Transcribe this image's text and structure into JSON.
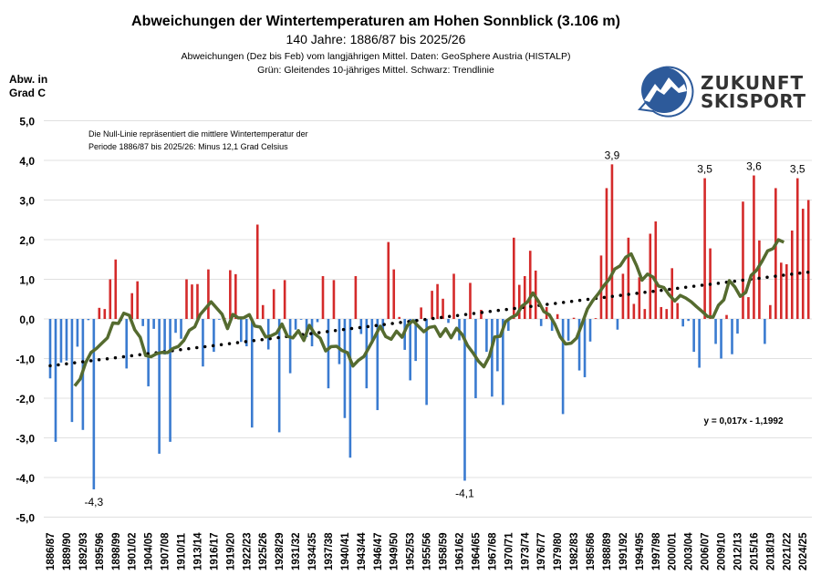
{
  "chart_data": {
    "type": "bar",
    "title": "Abweichungen der Wintertemperaturen am Hohen Sonnblick (3.106 m)",
    "subtitle": "140 Jahre: 1886/87 bis 2025/26",
    "subtitle2": "Abweichungen (Dez bis Feb) vom langjährigen Mittel. Daten: GeoSphere Austria (HISTALP)",
    "subtitle3": "Grün: Gleitendes 10-jähriges Mittel. Schwarz: Trendlinie",
    "ylabel_line1": "Abw. in",
    "ylabel_line2": "Grad C",
    "ylim": [
      -5,
      5
    ],
    "yticks": [
      "5,0",
      "4,0",
      "3,0",
      "2,0",
      "1,0",
      "0,0",
      "-1,0",
      "-2,0",
      "-3,0",
      "-4,0",
      "-5,0"
    ],
    "grid": true,
    "first_season": "1886/87",
    "last_season": "2025/26",
    "xtick_labels": [
      "1886/87",
      "1889/90",
      "1892/93",
      "1895/96",
      "1898/99",
      "1901/02",
      "1904/05",
      "1907/08",
      "1910/11",
      "1913/14",
      "1916/17",
      "1919/20",
      "1922/23",
      "1925/26",
      "1928/29",
      "1931/32",
      "1934/35",
      "1937/38",
      "1940/41",
      "1943/44",
      "1946/47",
      "1949/50",
      "1952/53",
      "1955/56",
      "1958/59",
      "1961/62",
      "1964/65",
      "1967/68",
      "1970/71",
      "1973/74",
      "1976/77",
      "1979/80",
      "1982/83",
      "1985/86",
      "1988/89",
      "1991/92",
      "1994/95",
      "1997/98",
      "2000/01",
      "2003/04",
      "2006/07",
      "2009/10",
      "2012/13",
      "2015/16",
      "2018/19",
      "2021/22",
      "2024/25"
    ],
    "values": [
      -1.5,
      -3.1,
      -1.1,
      -1.05,
      -2.6,
      -0.7,
      -2.8,
      -0.03,
      -4.3,
      0.28,
      0.25,
      1.0,
      1.5,
      -0.05,
      -1.25,
      0.65,
      0.95,
      -0.18,
      -1.7,
      -0.25,
      -3.4,
      -0.9,
      -3.1,
      -0.35,
      -0.5,
      1.0,
      0.87,
      0.88,
      -1.2,
      1.25,
      -0.83,
      -0.02,
      0.02,
      1.23,
      1.13,
      -0.58,
      -0.69,
      -2.74,
      2.38,
      0.35,
      -0.77,
      0.75,
      -2.86,
      0.98,
      -1.37,
      -0.27,
      -0.02,
      -0.46,
      -0.69,
      -0.08,
      1.08,
      -1.75,
      0.98,
      -1.14,
      -2.5,
      -3.5,
      1.08,
      -0.38,
      -1.75,
      -0.62,
      -2.3,
      -0.3,
      1.94,
      1.25,
      0.05,
      -0.78,
      -1.55,
      -1.06,
      0.29,
      -2.17,
      0.71,
      0.88,
      0.51,
      -0.1,
      1.14,
      -0.54,
      -4.08,
      0.91,
      -2.0,
      0.23,
      -0.83,
      -1.96,
      -1.32,
      -2.17,
      -0.3,
      2.05,
      0.86,
      1.08,
      1.72,
      1.22,
      -0.18,
      0.3,
      -0.3,
      0.12,
      -2.4,
      -0.55,
      0.03,
      -1.3,
      -1.47,
      -0.57,
      0.02,
      1.6,
      3.3,
      3.9,
      -0.27,
      1.14,
      2.05,
      0.38,
      1.05,
      0.25,
      2.15,
      2.46,
      0.3,
      0.25,
      1.28,
      0.4,
      -0.19,
      -0.05,
      -0.83,
      -1.23,
      3.55,
      1.78,
      -0.63,
      -1.0,
      0.1,
      -0.89,
      -0.37,
      2.96,
      0.55,
      3.62,
      1.98,
      -0.63,
      0.35,
      3.3,
      1.42,
      1.38,
      2.23,
      3.55,
      2.78,
      3.0
    ],
    "positive_color": "#d42a2a",
    "negative_color": "#3a7bd0",
    "moving_average": {
      "window": 10,
      "color": "#556b2f"
    },
    "trendline": {
      "equation": "y = 0,017x - 1,1992",
      "slope": 0.017,
      "intercept": -1.1992,
      "color": "#000000",
      "style": "dotted"
    },
    "annotations": [
      {
        "index": 8,
        "text": "-4,3"
      },
      {
        "index": 76,
        "text": "-4,1"
      },
      {
        "index": 103,
        "text": "3,9"
      },
      {
        "index": 120,
        "text": "3,5"
      },
      {
        "index": 129,
        "text": "3,6"
      },
      {
        "index": 137,
        "text": "3,5"
      }
    ],
    "note_line1": "Die Null-Linie repräsentiert die mittlere Wintertemperatur der",
    "note_line2": "Periode 1886/87 bis 2025/26: Minus 12,1 Grad Celsius"
  },
  "logo": {
    "line1": "ZUKUNFT",
    "line2": "SKISPORT",
    "color": "#2d5a9a"
  }
}
